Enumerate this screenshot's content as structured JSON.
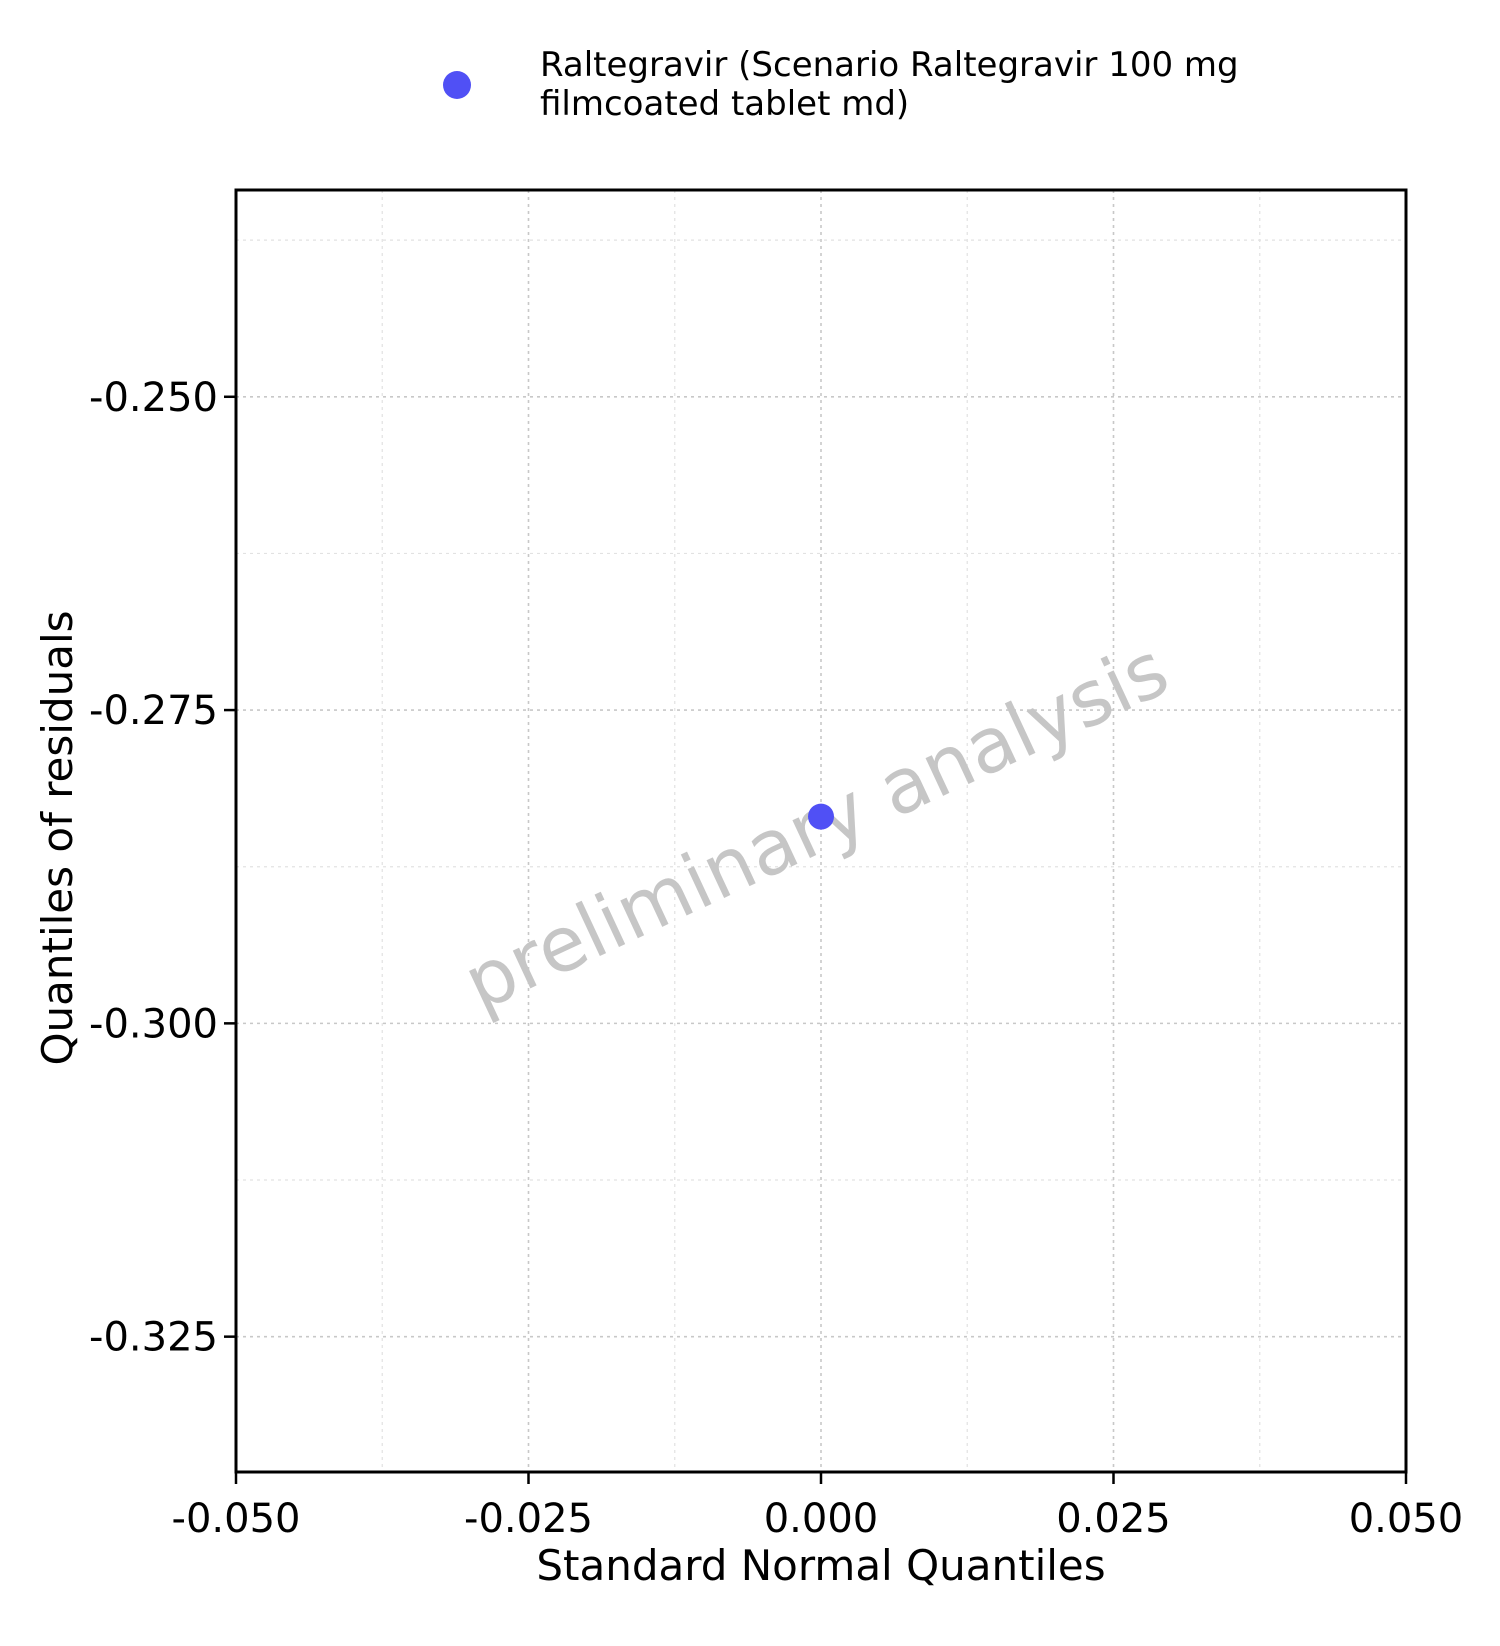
{
  "chart_data": {
    "type": "scatter",
    "xlabel": "Standard Normal Quantiles",
    "ylabel": "Quantiles of residuals",
    "xlim": [
      -0.05,
      0.05
    ],
    "ylim": [
      -0.3358,
      -0.2335
    ],
    "x_ticks": [
      -0.05,
      -0.025,
      0.0,
      0.025,
      0.05
    ],
    "x_tick_labels": [
      "-0.050",
      "-0.025",
      "0.000",
      "0.025",
      "0.050"
    ],
    "y_ticks": [
      -0.25,
      -0.275,
      -0.3,
      -0.325
    ],
    "y_tick_labels": [
      "-0.250",
      "-0.275",
      "-0.300",
      "-0.325"
    ],
    "grid": true,
    "legend_position": "top",
    "series": [
      {
        "name": "Raltegravir (Scenario Raltegravir 100 mg filmcoated tablet md)",
        "legend_lines": [
          "Raltegravir (Scenario Raltegravir 100 mg",
          "filmcoated tablet md)"
        ],
        "color": "#5050f5",
        "points": [
          {
            "x": 0.0,
            "y": -0.2835
          }
        ]
      }
    ],
    "watermark": "preliminary analysis"
  }
}
